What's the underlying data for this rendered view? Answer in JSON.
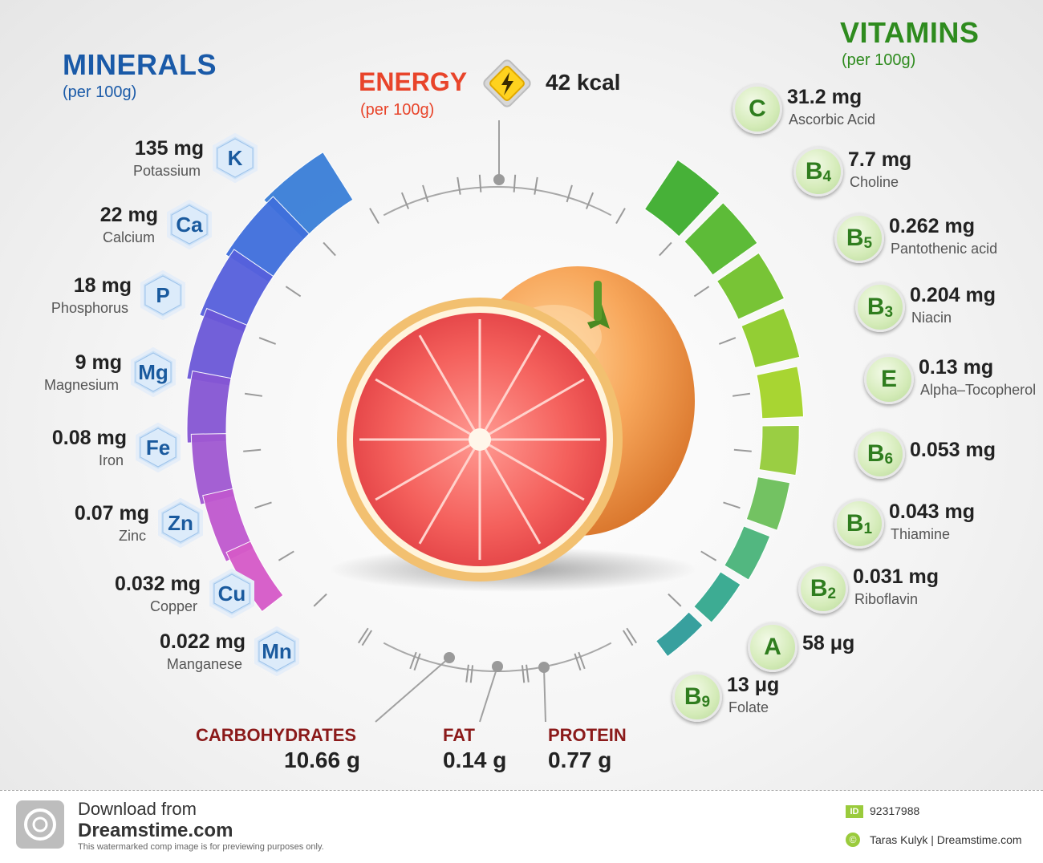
{
  "minerals": {
    "title": "MINERALS",
    "subtitle": "(per 100g)",
    "title_color": "#1a5aa8",
    "items": [
      {
        "symbol": "K",
        "value": "135 mg",
        "name": "Potassium",
        "color": "#3a7fd8"
      },
      {
        "symbol": "Ca",
        "value": "22 mg",
        "name": "Calcium",
        "color": "#3f6fdc"
      },
      {
        "symbol": "P",
        "value": "18 mg",
        "name": "Phosphorus",
        "color": "#5660dc"
      },
      {
        "symbol": "Mg",
        "value": "9 mg",
        "name": "Magnesium",
        "color": "#6b58d8"
      },
      {
        "symbol": "Fe",
        "value": "0.08 mg",
        "name": "Iron",
        "color": "#8656d4"
      },
      {
        "symbol": "Zn",
        "value": "0.07 mg",
        "name": "Zinc",
        "color": "#a058d2"
      },
      {
        "symbol": "Cu",
        "value": "0.032 mg",
        "name": "Copper",
        "color": "#c058cf"
      },
      {
        "symbol": "Mn",
        "value": "0.022 mg",
        "name": "Manganese",
        "color": "#d65ac8"
      }
    ]
  },
  "energy": {
    "title": "ENERGY",
    "subtitle": "(per 100g)",
    "value": "42 kcal",
    "icon": "lightning-icon",
    "title_color": "#e8442a"
  },
  "vitamins": {
    "title": "VITAMINS",
    "subtitle": "(per 100g)",
    "title_color": "#2e8b1e",
    "items": [
      {
        "letter": "C",
        "index": "",
        "value": "31.2 mg",
        "name": "Ascorbic Acid",
        "color": "#3eae2e"
      },
      {
        "letter": "B",
        "index": "4",
        "value": "7.7 mg",
        "name": "Choline",
        "color": "#55b82e"
      },
      {
        "letter": "B",
        "index": "5",
        "value": "0.262 mg",
        "name": "Pantothenic acid",
        "color": "#72c22c"
      },
      {
        "letter": "B",
        "index": "3",
        "value": "0.204 mg",
        "name": "Niacin",
        "color": "#8ecc2a"
      },
      {
        "letter": "E",
        "index": "",
        "value": "0.13 mg",
        "name": "Alpha–Tocopherol",
        "color": "#a4d428"
      },
      {
        "letter": "B",
        "index": "6",
        "value": "0.053 mg",
        "name": "",
        "color": "#96cc3a"
      },
      {
        "letter": "B",
        "index": "1",
        "value": "0.043 mg",
        "name": "Thiamine",
        "color": "#6cc05a"
      },
      {
        "letter": "B",
        "index": "2",
        "value": "0.031 mg",
        "name": "Riboflavin",
        "color": "#4ab47a"
      },
      {
        "letter": "A",
        "index": "",
        "value": "58 μg",
        "name": "",
        "color": "#34a88e"
      },
      {
        "letter": "B",
        "index": "9",
        "value": "13 μg",
        "name": "Folate",
        "color": "#2e9c9a"
      }
    ]
  },
  "macros": [
    {
      "title": "CARBOHYDRATES",
      "value": "10.66 g"
    },
    {
      "title": "FAT",
      "value": "0.14 g"
    },
    {
      "title": "PROTEIN",
      "value": "0.77 g"
    }
  ],
  "footer": {
    "download_line": "Download from",
    "site": "Dreamstime.com",
    "note": "This watermarked comp image is for previewing purposes only.",
    "id_label": "ID",
    "id_value": "92317988",
    "credit": "Taras Kulyk | Dreamstime.com"
  }
}
